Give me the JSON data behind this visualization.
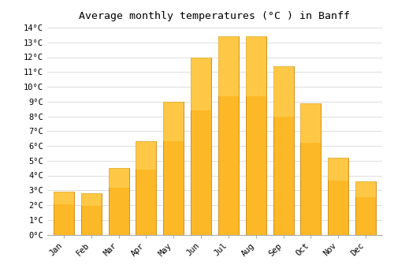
{
  "title": "Average monthly temperatures (°C ) in Banff",
  "months": [
    "Jan",
    "Feb",
    "Mar",
    "Apr",
    "May",
    "Jun",
    "Jul",
    "Aug",
    "Sep",
    "Oct",
    "Nov",
    "Dec"
  ],
  "values": [
    2.9,
    2.8,
    4.5,
    6.3,
    9.0,
    12.0,
    13.4,
    13.4,
    11.4,
    8.9,
    5.2,
    3.6
  ],
  "bar_color": "#FDB827",
  "bar_edge_color": "#C8860A",
  "ylim": [
    0,
    14
  ],
  "yticks": [
    0,
    1,
    2,
    3,
    4,
    5,
    6,
    7,
    8,
    9,
    10,
    11,
    12,
    13,
    14
  ],
  "background_color": "#ffffff",
  "grid_color": "#dddddd",
  "title_fontsize": 9.5,
  "tick_fontsize": 7.5
}
